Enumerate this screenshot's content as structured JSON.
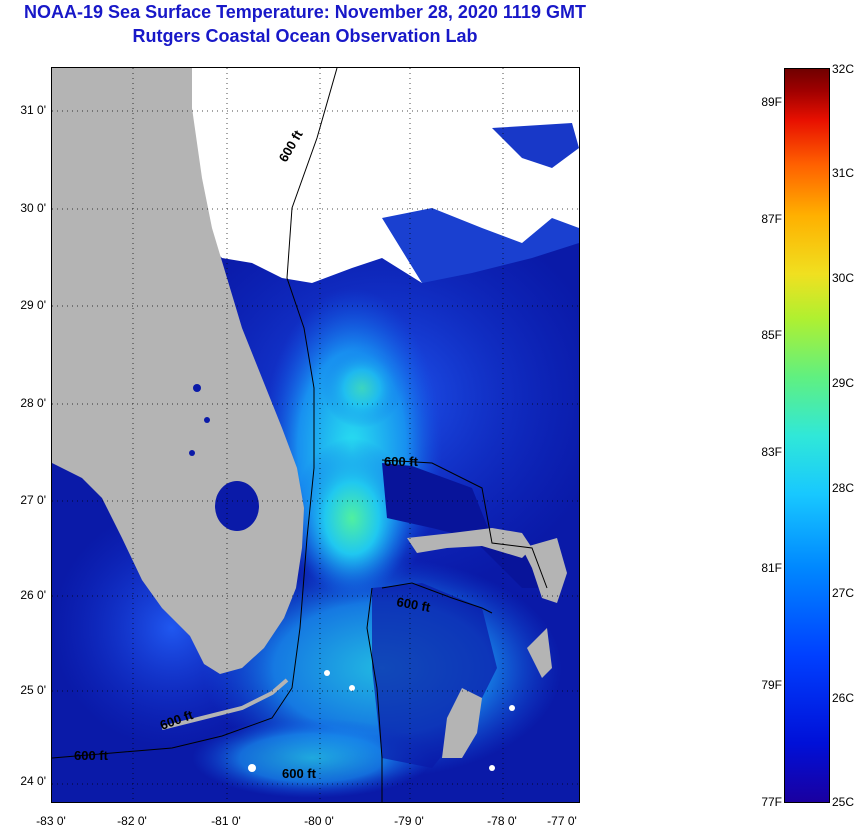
{
  "header": {
    "title": "NOAA-19 Sea Surface Temperature:  November 28, 2020 1119 GMT",
    "subtitle": "Rutgers Coastal Ocean Observation Lab"
  },
  "axes": {
    "lat_labels": [
      "31 0'",
      "30 0'",
      "29 0'",
      "28 0'",
      "27 0'",
      "26 0'",
      "25 0'",
      "24 0'"
    ],
    "lon_labels": [
      "-83 0'",
      "-82 0'",
      "-81 0'",
      "-80 0'",
      "-79 0'",
      "-78 0'",
      "-77 0'"
    ]
  },
  "contours": {
    "label": "600 ft"
  },
  "colorbar": {
    "fahrenheit": [
      "89F",
      "87F",
      "85F",
      "83F",
      "81F",
      "79F",
      "77F"
    ],
    "celsius": [
      "32C",
      "31C",
      "30C",
      "29C",
      "28C",
      "27C",
      "26C",
      "25C"
    ]
  },
  "colors": {
    "title": "#1818c8",
    "land": "#b4b4b4",
    "cloud": "#ffffff",
    "ocean_cool": "#0a1aa8",
    "ocean_warm": "#30e8d8"
  }
}
